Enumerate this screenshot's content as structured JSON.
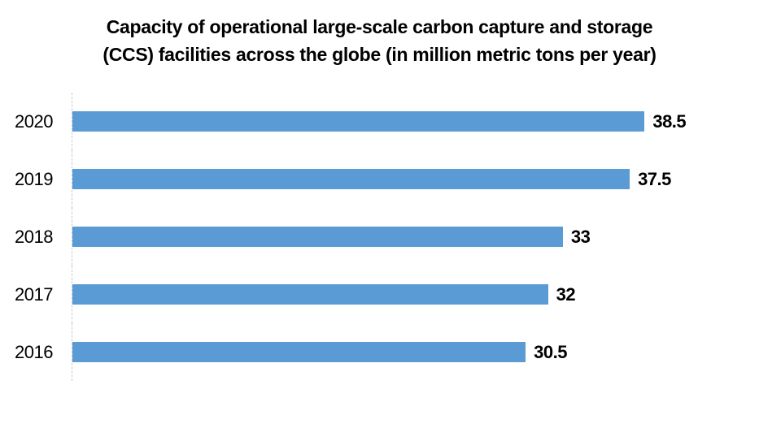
{
  "chart_data": {
    "type": "bar",
    "orientation": "horizontal",
    "title": "Capacity of operational large-scale carbon capture and storage (CCS) facilities across the globe (in million metric tons per year)",
    "categories": [
      "2020",
      "2019",
      "2018",
      "2017",
      "2016"
    ],
    "values": [
      38.5,
      37.5,
      33,
      32,
      30.5
    ],
    "value_labels": [
      "38.5",
      "37.5",
      "33",
      "32",
      "30.5"
    ],
    "xlabel": "",
    "ylabel": "",
    "xlim": [
      0,
      46.2
    ],
    "grid": false,
    "legend": false,
    "bar_color": "#5B9BD5",
    "axis_line_color": "#C9C9C9",
    "text_color": "#000000"
  }
}
